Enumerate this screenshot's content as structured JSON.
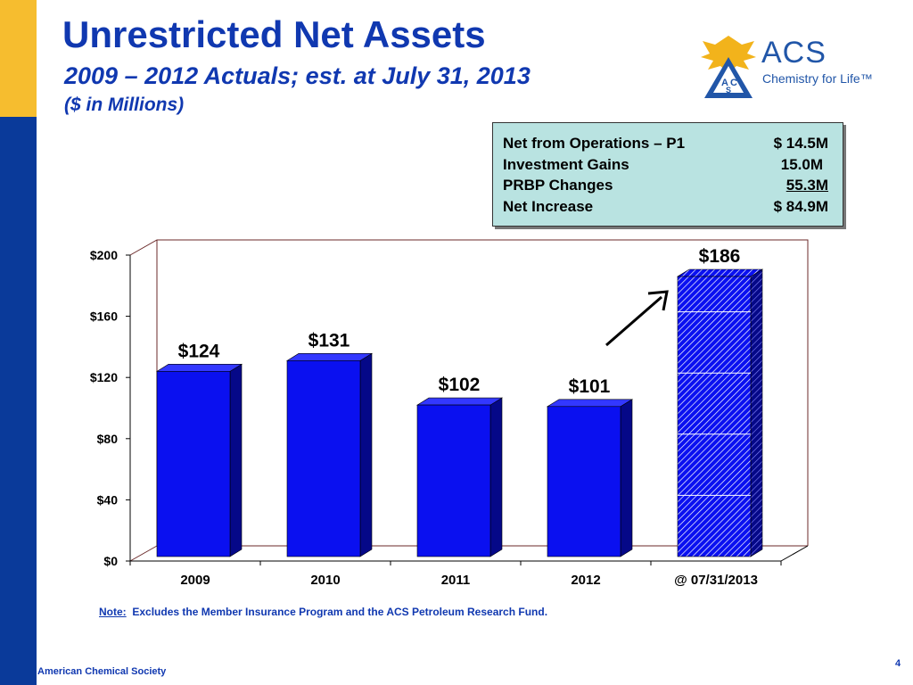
{
  "header": {
    "title": "Unrestricted Net Assets",
    "subtitle": "2009 – 2012 Actuals; est. at July 31, 2013",
    "units": "($ in Millions)"
  },
  "logo": {
    "wordmark": "ACS",
    "tagline": "Chemistry for Life™",
    "icon": "acs-eagle-emblem-icon"
  },
  "summary": {
    "rows": [
      {
        "label": "Net from Operations – P1",
        "value": "$ 14.5M",
        "underline": false
      },
      {
        "label": "Investment Gains",
        "value": "15.0M",
        "underline": false
      },
      {
        "label": "PRBP Changes",
        "value": "55.3M",
        "underline": true
      },
      {
        "label": "Net Increase",
        "value": "$ 84.9M",
        "underline": false
      }
    ]
  },
  "chart_data": {
    "type": "bar",
    "title": "",
    "xlabel": "",
    "ylabel": "",
    "categories": [
      "2009",
      "2010",
      "2011",
      "2012",
      "@ 07/31/2013"
    ],
    "values": [
      124,
      131,
      102,
      101,
      186
    ],
    "data_labels": [
      "$124",
      "$131",
      "$102",
      "$101",
      "$186"
    ],
    "ylim": [
      0,
      200
    ],
    "y_ticks": [
      0,
      40,
      80,
      120,
      160,
      200
    ],
    "y_tick_labels": [
      "$0",
      "$40",
      "$80",
      "$120",
      "$160",
      "$200"
    ],
    "estimated_index": 4,
    "grid": false,
    "annotations": [
      "upward-arrow-toward-estimate"
    ],
    "colors": {
      "bar": "#0a10f0",
      "bar_side": "#050888",
      "bar_top": "#3338ff",
      "hatch": "#ffffff",
      "frame": "#6b2a2a"
    }
  },
  "note": {
    "label": "Note:",
    "text": "Excludes the Member Insurance Program and the ACS Petroleum Research Fund."
  },
  "footer": {
    "org": "American Chemical Society",
    "page": "4"
  },
  "colors": {
    "brand_blue": "#1038b0",
    "sidebar": "#0a3a9a",
    "sidebar_accent": "#f6bd2f",
    "summary_bg": "#b9e3e1"
  }
}
